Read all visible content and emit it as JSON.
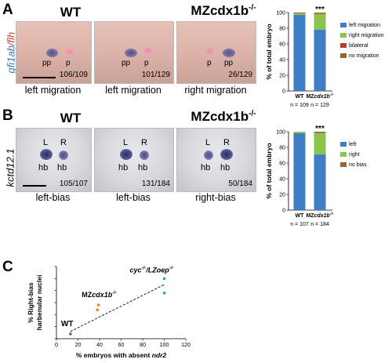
{
  "panelA": {
    "label": "A",
    "header_wt": "WT",
    "header_mz": "MZcdx1b",
    "header_mz_sup": "-/-",
    "side_label_a": "gfi1ab",
    "side_label_b": "/flh",
    "photos": [
      {
        "count": "106/109",
        "caption": "left migration",
        "labels": [
          "pp",
          "p"
        ]
      },
      {
        "count": "101/129",
        "caption": "left migration",
        "labels": [
          "pp",
          "p"
        ]
      },
      {
        "count": "26/129",
        "caption": "right migration",
        "labels": [
          "p",
          "pp"
        ]
      }
    ]
  },
  "panelB": {
    "label": "B",
    "header_wt": "WT",
    "header_mz": "MZcdx1b",
    "header_mz_sup": "-/-",
    "side_label": "kctd12.1",
    "photos": [
      {
        "count": "105/107",
        "caption": "left-bias",
        "labels": [
          "L",
          "R",
          "hb",
          "hb"
        ]
      },
      {
        "count": "131/184",
        "caption": "left-bias",
        "labels": [
          "L",
          "R",
          "hb",
          "hb"
        ]
      },
      {
        "count": "50/184",
        "caption": "right-bias",
        "labels": [
          "L",
          "R",
          "hb",
          "hb"
        ]
      }
    ]
  },
  "panelC": {
    "label": "C"
  },
  "colors": {
    "left": "#3d7ec6",
    "right": "#8cc34a",
    "bilateral": "#c0392b",
    "no_bias": "#a0622d"
  },
  "chart_data": [
    {
      "type": "bar",
      "stacked": true,
      "categories": [
        "WT",
        "MZcdx1b-/-"
      ],
      "category_n": [
        "n = 109",
        "n = 129"
      ],
      "series": [
        {
          "name": "left migration",
          "values": [
            97.2,
            78.3
          ]
        },
        {
          "name": "right migration",
          "values": [
            1.9,
            20.2
          ]
        },
        {
          "name": "bilateral",
          "values": [
            0.9,
            0.8
          ]
        },
        {
          "name": "no migration",
          "values": [
            0,
            0.7
          ]
        }
      ],
      "ylabel": "% of total embryo",
      "ylim": [
        0,
        100
      ],
      "yticks": [
        0,
        20,
        40,
        60,
        80,
        100
      ],
      "significance": "***",
      "legend": "right"
    },
    {
      "type": "bar",
      "stacked": true,
      "categories": [
        "WT",
        "MZcdx1b-/-"
      ],
      "category_n": [
        "n = 107",
        "n = 184"
      ],
      "series": [
        {
          "name": "left",
          "values": [
            98.1,
            71.2
          ]
        },
        {
          "name": "right",
          "values": [
            1.9,
            27.2
          ]
        },
        {
          "name": "no bias",
          "values": [
            0,
            1.6
          ]
        }
      ],
      "ylabel": "% of total embryo",
      "ylim": [
        0,
        100
      ],
      "yticks": [
        0,
        20,
        40,
        60,
        80,
        100
      ],
      "significance": "***",
      "legend": "right"
    },
    {
      "type": "scatter",
      "xlabel": "% embryos with absent ndr2",
      "ylabel_line1": "% Right-bias",
      "ylabel_line2": "harbenular nuclei",
      "xlim": [
        0,
        120
      ],
      "ylim": [
        0,
        60
      ],
      "xticks": [
        0,
        20,
        40,
        60,
        80,
        100,
        120
      ],
      "yticks": [
        0,
        10,
        20,
        30,
        40,
        50,
        60
      ],
      "points": [
        {
          "x": 13,
          "y": 4,
          "color": "#2e6fc0",
          "group": "WT"
        },
        {
          "x": 38,
          "y": 24,
          "color": "#e8851f",
          "group": "MZcdx1b-/-"
        },
        {
          "x": 39,
          "y": 28,
          "color": "#e8851f",
          "group": "MZcdx1b-/-"
        },
        {
          "x": 100,
          "y": 50,
          "color": "#2fae9a",
          "group": "cyc-/-/LZoep-/-"
        },
        {
          "x": 100,
          "y": 38,
          "color": "#2fae9a",
          "group": "cyc-/-/LZoep-/-"
        }
      ],
      "trend": {
        "x1": 13,
        "y1": 6,
        "x2": 100,
        "y2": 45
      },
      "annotations": [
        {
          "text": "WT",
          "sup": ""
        },
        {
          "text": "MZcdx1b",
          "sup": "-/-"
        },
        {
          "text": "cyc",
          "sup": "-/-",
          "text2": "/LZoep",
          "sup2": "-/-"
        }
      ]
    }
  ]
}
